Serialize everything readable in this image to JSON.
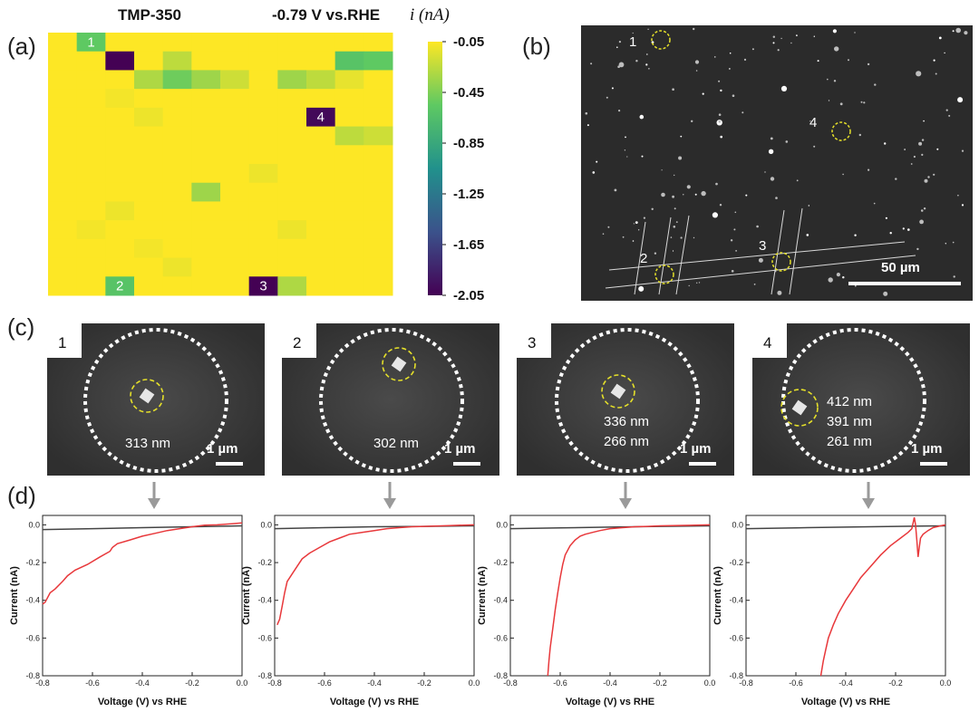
{
  "figure": {
    "panel_labels": [
      "(a)",
      "(b)",
      "(c)",
      "(d)"
    ],
    "heatmap_titles": [
      "TMP-350",
      "-0.79 V vs.RHE"
    ],
    "colorbar_title": "i (nA)"
  },
  "heatmap": {
    "rows": 14,
    "cols": 12,
    "base_value": -0.05,
    "colorbar_ticks": [
      "-0.05",
      "-0.45",
      "-0.85",
      "-1.25",
      "-1.65",
      "-2.05"
    ],
    "colorbar_range": [
      -2.05,
      -0.05
    ],
    "colormap": [
      "#440154",
      "#3b528b",
      "#21918c",
      "#5ec962",
      "#fde725"
    ],
    "cells": [
      {
        "r": 0,
        "c": 1,
        "v": -0.55,
        "label": "1"
      },
      {
        "r": 1,
        "c": 2,
        "v": -2.05
      },
      {
        "r": 1,
        "c": 4,
        "v": -0.25
      },
      {
        "r": 1,
        "c": 10,
        "v": -0.6
      },
      {
        "r": 1,
        "c": 11,
        "v": -0.55
      },
      {
        "r": 2,
        "c": 3,
        "v": -0.3
      },
      {
        "r": 2,
        "c": 4,
        "v": -0.5
      },
      {
        "r": 2,
        "c": 5,
        "v": -0.35
      },
      {
        "r": 2,
        "c": 6,
        "v": -0.2
      },
      {
        "r": 2,
        "c": 8,
        "v": -0.35
      },
      {
        "r": 2,
        "c": 9,
        "v": -0.25
      },
      {
        "r": 2,
        "c": 10,
        "v": -0.12
      },
      {
        "r": 3,
        "c": 2,
        "v": -0.08
      },
      {
        "r": 4,
        "c": 3,
        "v": -0.1
      },
      {
        "r": 4,
        "c": 9,
        "v": -2.0,
        "label": "4"
      },
      {
        "r": 5,
        "c": 9,
        "v": -0.02
      },
      {
        "r": 5,
        "c": 10,
        "v": -0.25
      },
      {
        "r": 5,
        "c": 11,
        "v": -0.2
      },
      {
        "r": 6,
        "c": 11,
        "v": -0.03
      },
      {
        "r": 7,
        "c": 7,
        "v": -0.1
      },
      {
        "r": 8,
        "c": 4,
        "v": -0.02
      },
      {
        "r": 8,
        "c": 5,
        "v": -0.35
      },
      {
        "r": 9,
        "c": 2,
        "v": -0.1
      },
      {
        "r": 10,
        "c": 1,
        "v": -0.08
      },
      {
        "r": 10,
        "c": 8,
        "v": -0.1
      },
      {
        "r": 11,
        "c": 3,
        "v": -0.08
      },
      {
        "r": 12,
        "c": 4,
        "v": -0.1
      },
      {
        "r": 13,
        "c": 2,
        "v": -0.6,
        "label": "2"
      },
      {
        "r": 13,
        "c": 7,
        "v": -2.05,
        "label": "3"
      },
      {
        "r": 13,
        "c": 8,
        "v": -0.3
      }
    ]
  },
  "sem_overview": {
    "scale_label": "50 µm",
    "site_labels": [
      "1",
      "2",
      "3",
      "4"
    ]
  },
  "sem_zoom": [
    {
      "id": "1",
      "sizes": [
        "313 nm"
      ],
      "scale": "1 µm"
    },
    {
      "id": "2",
      "sizes": [
        "302 nm"
      ],
      "scale": "1 µm"
    },
    {
      "id": "3",
      "sizes": [
        "336 nm",
        "266 nm"
      ],
      "scale": "1 µm"
    },
    {
      "id": "4",
      "sizes": [
        "412 nm",
        "391 nm",
        "261 nm"
      ],
      "scale": "1 µm"
    }
  ],
  "chart_data": [
    {
      "type": "line",
      "xlabel": "Voltage (V) vs RHE",
      "ylabel": "Current (nA)",
      "xlim": [
        -0.8,
        0.0
      ],
      "ylim": [
        -0.8,
        0.05
      ],
      "xticks": [
        "-0.8",
        "-0.6",
        "-0.4",
        "-0.2",
        "0.0"
      ],
      "yticks": [
        "0.0",
        "-0.2",
        "-0.4",
        "-0.6",
        "-0.8"
      ],
      "series": [
        {
          "color": "#e8383b",
          "x": [
            -0.8,
            -0.79,
            -0.77,
            -0.75,
            -0.72,
            -0.7,
            -0.67,
            -0.62,
            -0.57,
            -0.53,
            -0.52,
            -0.5,
            -0.45,
            -0.4,
            -0.35,
            -0.3,
            -0.25,
            -0.2,
            -0.15,
            -0.1,
            -0.05,
            0.0
          ],
          "y": [
            -0.42,
            -0.41,
            -0.36,
            -0.34,
            -0.3,
            -0.27,
            -0.24,
            -0.21,
            -0.17,
            -0.14,
            -0.12,
            -0.1,
            -0.08,
            -0.06,
            -0.045,
            -0.03,
            -0.02,
            -0.01,
            -0.002,
            0.0,
            0.005,
            0.01
          ]
        },
        {
          "color": "#444444",
          "x": [
            -0.8,
            -0.6,
            -0.4,
            -0.2,
            0.0
          ],
          "y": [
            -0.025,
            -0.02,
            -0.015,
            -0.01,
            -0.005
          ]
        }
      ]
    },
    {
      "type": "line",
      "xlabel": "Voltage (V) vs RHE",
      "ylabel": "Current (nA)",
      "xlim": [
        -0.8,
        0.0
      ],
      "ylim": [
        -0.8,
        0.05
      ],
      "xticks": [
        "-0.8",
        "-0.6",
        "-0.4",
        "-0.2",
        "0.0"
      ],
      "yticks": [
        "0.0",
        "-0.2",
        "-0.4",
        "-0.6",
        "-0.8"
      ],
      "series": [
        {
          "color": "#e8383b",
          "x": [
            -0.79,
            -0.78,
            -0.77,
            -0.76,
            -0.75,
            -0.73,
            -0.71,
            -0.69,
            -0.66,
            -0.62,
            -0.58,
            -0.54,
            -0.5,
            -0.45,
            -0.4,
            -0.35,
            -0.3,
            -0.25,
            -0.2,
            -0.1,
            0.0
          ],
          "y": [
            -0.53,
            -0.5,
            -0.43,
            -0.36,
            -0.3,
            -0.26,
            -0.22,
            -0.18,
            -0.15,
            -0.12,
            -0.09,
            -0.07,
            -0.05,
            -0.04,
            -0.03,
            -0.02,
            -0.015,
            -0.01,
            -0.008,
            -0.004,
            0.0
          ]
        },
        {
          "color": "#444444",
          "x": [
            -0.8,
            -0.6,
            -0.4,
            -0.2,
            0.0
          ],
          "y": [
            -0.02,
            -0.015,
            -0.01,
            -0.008,
            -0.005
          ]
        }
      ]
    },
    {
      "type": "line",
      "xlabel": "Voltage (V) vs RHE",
      "ylabel": "Current (nA)",
      "xlim": [
        -0.8,
        0.0
      ],
      "ylim": [
        -0.8,
        0.05
      ],
      "xticks": [
        "-0.8",
        "-0.6",
        "-0.4",
        "-0.2",
        "0.0"
      ],
      "yticks": [
        "0.0",
        "-0.2",
        "-0.4",
        "-0.6",
        "-0.8"
      ],
      "series": [
        {
          "color": "#e8383b",
          "x": [
            -0.65,
            -0.645,
            -0.64,
            -0.63,
            -0.62,
            -0.61,
            -0.6,
            -0.59,
            -0.58,
            -0.56,
            -0.54,
            -0.52,
            -0.5,
            -0.47,
            -0.44,
            -0.4,
            -0.35,
            -0.3,
            -0.25,
            -0.2,
            -0.1,
            0.0
          ],
          "y": [
            -0.8,
            -0.72,
            -0.65,
            -0.55,
            -0.45,
            -0.36,
            -0.28,
            -0.21,
            -0.16,
            -0.11,
            -0.08,
            -0.06,
            -0.05,
            -0.04,
            -0.03,
            -0.02,
            -0.015,
            -0.01,
            -0.008,
            -0.005,
            -0.003,
            0.0
          ]
        },
        {
          "color": "#444444",
          "x": [
            -0.8,
            -0.6,
            -0.4,
            -0.2,
            0.0
          ],
          "y": [
            -0.02,
            -0.016,
            -0.012,
            -0.008,
            -0.005
          ]
        }
      ]
    },
    {
      "type": "line",
      "xlabel": "Voltage (V) vs RHE",
      "ylabel": "Current (nA)",
      "xlim": [
        -0.8,
        0.0
      ],
      "ylim": [
        -0.8,
        0.05
      ],
      "xticks": [
        "-0.8",
        "-0.6",
        "-0.4",
        "-0.2",
        "0.0"
      ],
      "yticks": [
        "0.0",
        "-0.2",
        "-0.4",
        "-0.6",
        "-0.8"
      ],
      "series": [
        {
          "color": "#e8383b",
          "x": [
            -0.5,
            -0.49,
            -0.48,
            -0.47,
            -0.45,
            -0.43,
            -0.4,
            -0.37,
            -0.34,
            -0.3,
            -0.26,
            -0.22,
            -0.18,
            -0.15,
            -0.135,
            -0.13,
            -0.125,
            -0.12,
            -0.115,
            -0.11,
            -0.105,
            -0.1,
            -0.09,
            -0.07,
            -0.05,
            -0.02,
            0.0
          ],
          "y": [
            -0.8,
            -0.72,
            -0.66,
            -0.6,
            -0.53,
            -0.47,
            -0.4,
            -0.34,
            -0.28,
            -0.22,
            -0.16,
            -0.11,
            -0.07,
            -0.04,
            -0.02,
            0.01,
            0.04,
            0.0,
            -0.08,
            -0.17,
            -0.12,
            -0.07,
            -0.05,
            -0.03,
            -0.015,
            -0.005,
            0.0
          ]
        },
        {
          "color": "#444444",
          "x": [
            -0.8,
            -0.6,
            -0.4,
            -0.2,
            0.0
          ],
          "y": [
            -0.02,
            -0.016,
            -0.012,
            -0.008,
            -0.005
          ]
        }
      ]
    }
  ]
}
